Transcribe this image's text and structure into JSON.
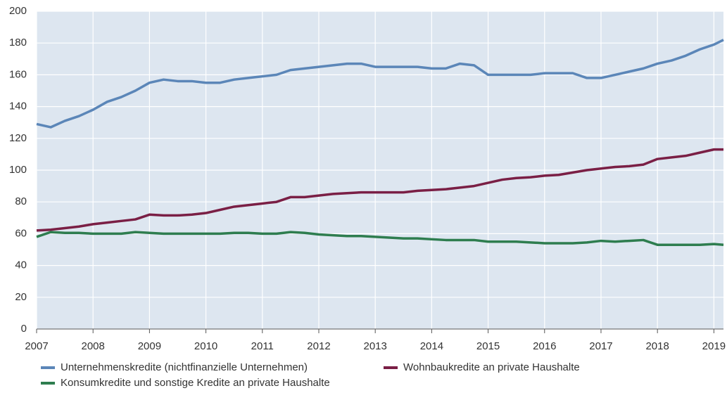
{
  "chart_data": {
    "type": "line",
    "x": [
      2007,
      2007.25,
      2007.5,
      2007.75,
      2008,
      2008.25,
      2008.5,
      2008.75,
      2009,
      2009.25,
      2009.5,
      2009.75,
      2010,
      2010.25,
      2010.5,
      2010.75,
      2011,
      2011.25,
      2011.5,
      2011.75,
      2012,
      2012.25,
      2012.5,
      2012.75,
      2013,
      2013.25,
      2013.5,
      2013.75,
      2014,
      2014.25,
      2014.5,
      2014.75,
      2015,
      2015.25,
      2015.5,
      2015.75,
      2016,
      2016.25,
      2016.5,
      2016.75,
      2017,
      2017.25,
      2017.5,
      2017.75,
      2018,
      2018.25,
      2018.5,
      2018.75,
      2019,
      2019.17
    ],
    "series": [
      {
        "name": "Unternehmenskredite (nichtfinanzielle Unternehmen)",
        "color": "#5b86b8",
        "values": [
          129,
          127,
          131,
          134,
          138,
          143,
          146,
          150,
          155,
          157,
          156,
          156,
          155,
          155,
          157,
          158,
          159,
          160,
          163,
          164,
          165,
          166,
          167,
          167,
          165,
          165,
          165,
          165,
          164,
          164,
          167,
          166,
          160,
          160,
          160,
          160,
          161,
          161,
          161,
          158,
          158,
          160,
          162,
          164,
          167,
          169,
          172,
          176,
          179,
          182
        ]
      },
      {
        "name": "Wohnbaukredite an private Haushalte",
        "color": "#7a1f45",
        "values": [
          62,
          62.5,
          63.5,
          64.5,
          66,
          67,
          68,
          69,
          72,
          71.5,
          71.5,
          72,
          73,
          75,
          77,
          78,
          79,
          80,
          83,
          83,
          84,
          85,
          85.5,
          86,
          86,
          86,
          86,
          87,
          87.5,
          88,
          89,
          90,
          92,
          94,
          95,
          95.5,
          96.5,
          97,
          98.5,
          100,
          101,
          102,
          102.5,
          103.5,
          107,
          108,
          109,
          111,
          113,
          113
        ]
      },
      {
        "name": "Konsumkredite und sonstige Kredite an private Haushalte",
        "color": "#2e7d4f",
        "values": [
          58,
          61,
          60.5,
          60.5,
          60,
          60,
          60,
          61,
          60.5,
          60,
          60,
          60,
          60,
          60,
          60.5,
          60.5,
          60,
          60,
          61,
          60.5,
          59.5,
          59,
          58.5,
          58.5,
          58,
          57.5,
          57,
          57,
          56.5,
          56,
          56,
          56,
          55,
          55,
          55,
          54.5,
          54,
          54,
          54,
          54.5,
          55.5,
          55,
          55.5,
          56,
          53,
          53,
          53,
          53,
          53.5,
          53
        ]
      }
    ],
    "xlim": [
      2007,
      2019.17
    ],
    "xticks": [
      2007,
      2008,
      2009,
      2010,
      2011,
      2012,
      2013,
      2014,
      2015,
      2016,
      2017,
      2018,
      2019
    ],
    "ylim": [
      0,
      200
    ],
    "yticks": [
      0,
      20,
      40,
      60,
      80,
      100,
      120,
      140,
      160,
      180,
      200
    ],
    "grid": true,
    "plot_background": "#dde6f0",
    "legend": "bottom"
  }
}
